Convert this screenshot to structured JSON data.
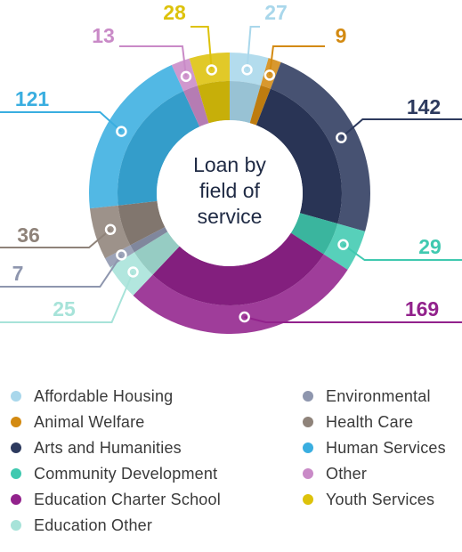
{
  "chart_data": {
    "type": "pie",
    "title": "Loan by field of service",
    "title_lines": [
      "Loan by",
      "field of",
      "service"
    ],
    "start": "top",
    "direction": "clockwise",
    "slices": [
      {
        "label": "Affordable Housing",
        "value": 27,
        "color": "#a9d7eb"
      },
      {
        "label": "Animal Welfare",
        "value": 9,
        "color": "#d38a11"
      },
      {
        "label": "Arts and Humanities",
        "value": 142,
        "color": "#2d3a5e"
      },
      {
        "label": "Community Development",
        "value": 29,
        "color": "#40c9b0"
      },
      {
        "label": "Education Charter School",
        "value": 169,
        "color": "#92228c"
      },
      {
        "label": "Education Other",
        "value": 25,
        "color": "#a7e3d9"
      },
      {
        "label": "Environmental",
        "value": 7,
        "color": "#8e96ae"
      },
      {
        "label": "Health Care",
        "value": 36,
        "color": "#8f837a"
      },
      {
        "label": "Human Services",
        "value": 121,
        "color": "#3aaee0"
      },
      {
        "label": "Other",
        "value": 13,
        "color": "#c98ac7"
      },
      {
        "label": "Youth Services",
        "value": 28,
        "color": "#ddc20a"
      }
    ],
    "legend_placement": "bottom"
  }
}
